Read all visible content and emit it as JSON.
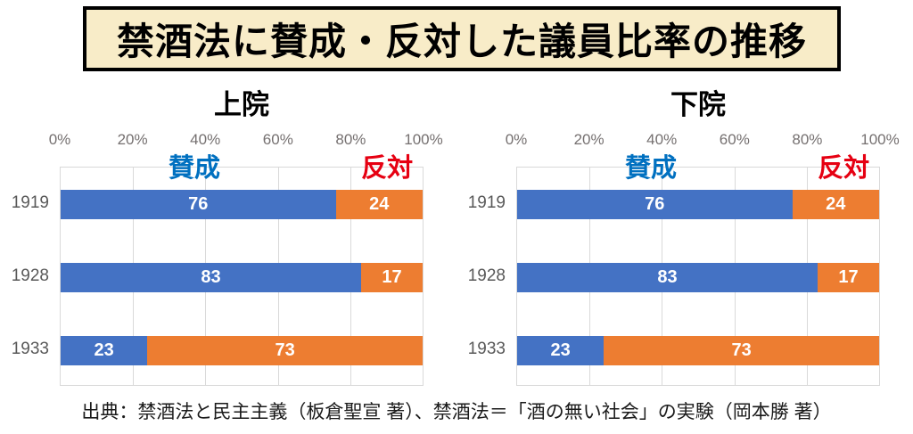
{
  "page": {
    "title": "禁酒法に賛成・反対した議員比率の推移",
    "source": "出典：禁酒法と民主主義（板倉聖宣 著）、禁酒法＝「酒の無い社会」の実験（岡本勝 著）",
    "background_color": "#FFFFFF",
    "title_box_background": "#F8ECC8",
    "title_box_border": "#000000"
  },
  "chart_data": [
    {
      "type": "bar",
      "subtype": "horizontal-100pct-stacked",
      "title": "上院",
      "categories": [
        "1919",
        "1928",
        "1933"
      ],
      "series": [
        {
          "name": "賛成",
          "bar_color": "#4472C4",
          "label_color": "#0070C0",
          "values": [
            76,
            83,
            23
          ]
        },
        {
          "name": "反対",
          "bar_color": "#ED7D31",
          "label_color": "#E60012",
          "values": [
            24,
            17,
            73
          ]
        }
      ],
      "x_ticks": [
        "0%",
        "20%",
        "40%",
        "60%",
        "80%",
        "100%"
      ],
      "xlim": [
        0,
        100
      ],
      "grid": true,
      "gridline_color": "#D9D9D9",
      "value_label_color": "#FFFFFF",
      "axis_tick_color": "#757070",
      "category_label_color": "#595959",
      "legend_position": "above-plot"
    },
    {
      "type": "bar",
      "subtype": "horizontal-100pct-stacked",
      "title": "下院",
      "categories": [
        "1919",
        "1928",
        "1933"
      ],
      "series": [
        {
          "name": "賛成",
          "bar_color": "#4472C4",
          "label_color": "#0070C0",
          "values": [
            76,
            83,
            23
          ]
        },
        {
          "name": "反対",
          "bar_color": "#ED7D31",
          "label_color": "#E60012",
          "values": [
            24,
            17,
            73
          ]
        }
      ],
      "x_ticks": [
        "0%",
        "20%",
        "40%",
        "60%",
        "80%",
        "100%"
      ],
      "xlim": [
        0,
        100
      ],
      "grid": true,
      "gridline_color": "#D9D9D9",
      "value_label_color": "#FFFFFF",
      "axis_tick_color": "#757070",
      "category_label_color": "#595959",
      "legend_position": "above-plot"
    }
  ]
}
